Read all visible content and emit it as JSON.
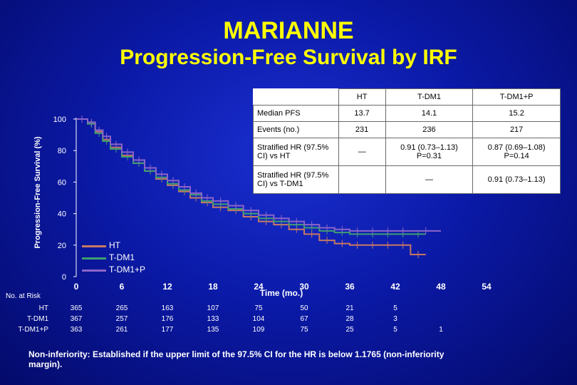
{
  "slide": {
    "title": "MARIANNE",
    "subtitle": "Progression-Free Survival by IRF",
    "footnote": "Non-inferiority: Established if the upper limit of the 97.5% CI for the HR is below 1.1765 (non-inferiority margin)."
  },
  "summary_table": {
    "columns": [
      "HT",
      "T-DM1",
      "T-DM1+P"
    ],
    "rows": [
      {
        "label": "Median PFS",
        "values": [
          "13.7",
          "14.1",
          "15.2"
        ]
      },
      {
        "label": "Events (no.)",
        "values": [
          "231",
          "236",
          "217"
        ]
      },
      {
        "label": "Stratified HR (97.5% CI) vs HT",
        "values": [
          "—",
          "0.91 (0.73–1.13) P=0.31",
          "0.87 (0.69–1.08) P=0.14"
        ]
      },
      {
        "label": "Stratified HR (97.5% CI) vs T-DM1",
        "values": [
          "",
          "—",
          "0.91 (0.73–1.13)"
        ]
      }
    ]
  },
  "risk_table": {
    "title": "No. at Risk",
    "rows": [
      {
        "label": "HT",
        "counts": [
          "365",
          "265",
          "163",
          "107",
          "75",
          "50",
          "21",
          "5",
          ""
        ]
      },
      {
        "label": "T-DM1",
        "counts": [
          "367",
          "257",
          "176",
          "133",
          "104",
          "67",
          "28",
          "3",
          ""
        ]
      },
      {
        "label": "T-DM1+P",
        "counts": [
          "363",
          "261",
          "177",
          "135",
          "109",
          "75",
          "25",
          "5",
          "1"
        ]
      }
    ]
  },
  "colors": {
    "background": "#0b1aa8",
    "title": "#ffff00",
    "HT": "#c87864",
    "T-DM1": "#3f9e6e",
    "T-DM1+P": "#8c64c8"
  },
  "chart_data": {
    "type": "line",
    "step": true,
    "title": "Progression-Free Survival by IRF",
    "xlabel": "Time (mo.)",
    "ylabel": "Progression-Free Survival (%)",
    "xlim": [
      0,
      54
    ],
    "ylim": [
      0,
      100
    ],
    "xticks": [
      0,
      6,
      12,
      18,
      24,
      30,
      36,
      42,
      48,
      54
    ],
    "yticks": [
      0,
      20,
      40,
      60,
      80,
      100
    ],
    "legend": [
      "HT",
      "T-DM1",
      "T-DM1+P"
    ],
    "legend_position": "bottom-left",
    "series": [
      {
        "name": "HT",
        "x": [
          0,
          1.5,
          2.5,
          3.5,
          4.5,
          6,
          7.5,
          9,
          10.5,
          12,
          13.5,
          15,
          16.5,
          18,
          20,
          22,
          24,
          26,
          28,
          30,
          32,
          34,
          36,
          38,
          40,
          42,
          44,
          46
        ],
        "y": [
          100,
          97,
          92,
          87,
          82,
          77,
          72,
          67,
          62,
          58,
          54,
          50,
          47,
          44,
          42,
          38,
          35,
          33,
          30,
          27,
          23,
          21,
          20,
          20,
          20,
          20,
          14,
          14
        ]
      },
      {
        "name": "T-DM1",
        "x": [
          0,
          1.5,
          2.5,
          3.5,
          4.5,
          6,
          7.5,
          9,
          10.5,
          12,
          13.5,
          15,
          16.5,
          18,
          20,
          22,
          24,
          26,
          28,
          30,
          32,
          34,
          36,
          38,
          40,
          42,
          44,
          46
        ],
        "y": [
          100,
          97,
          91,
          86,
          81,
          76,
          72,
          67,
          63,
          59,
          55,
          52,
          48,
          46,
          43,
          40,
          37,
          35,
          33,
          31,
          29,
          28,
          27,
          27,
          27,
          27,
          27,
          27
        ]
      },
      {
        "name": "T-DM1+P",
        "x": [
          0,
          1.5,
          2.5,
          3.5,
          4.5,
          6,
          7.5,
          9,
          10.5,
          12,
          13.5,
          15,
          16.5,
          18,
          20,
          22,
          24,
          26,
          28,
          30,
          32,
          34,
          36,
          38,
          40,
          42,
          44,
          48
        ],
        "y": [
          100,
          98,
          93,
          89,
          84,
          79,
          74,
          69,
          65,
          61,
          57,
          53,
          50,
          48,
          45,
          42,
          39,
          37,
          35,
          33,
          31,
          30,
          29,
          29,
          29,
          29,
          29,
          29
        ]
      }
    ]
  }
}
